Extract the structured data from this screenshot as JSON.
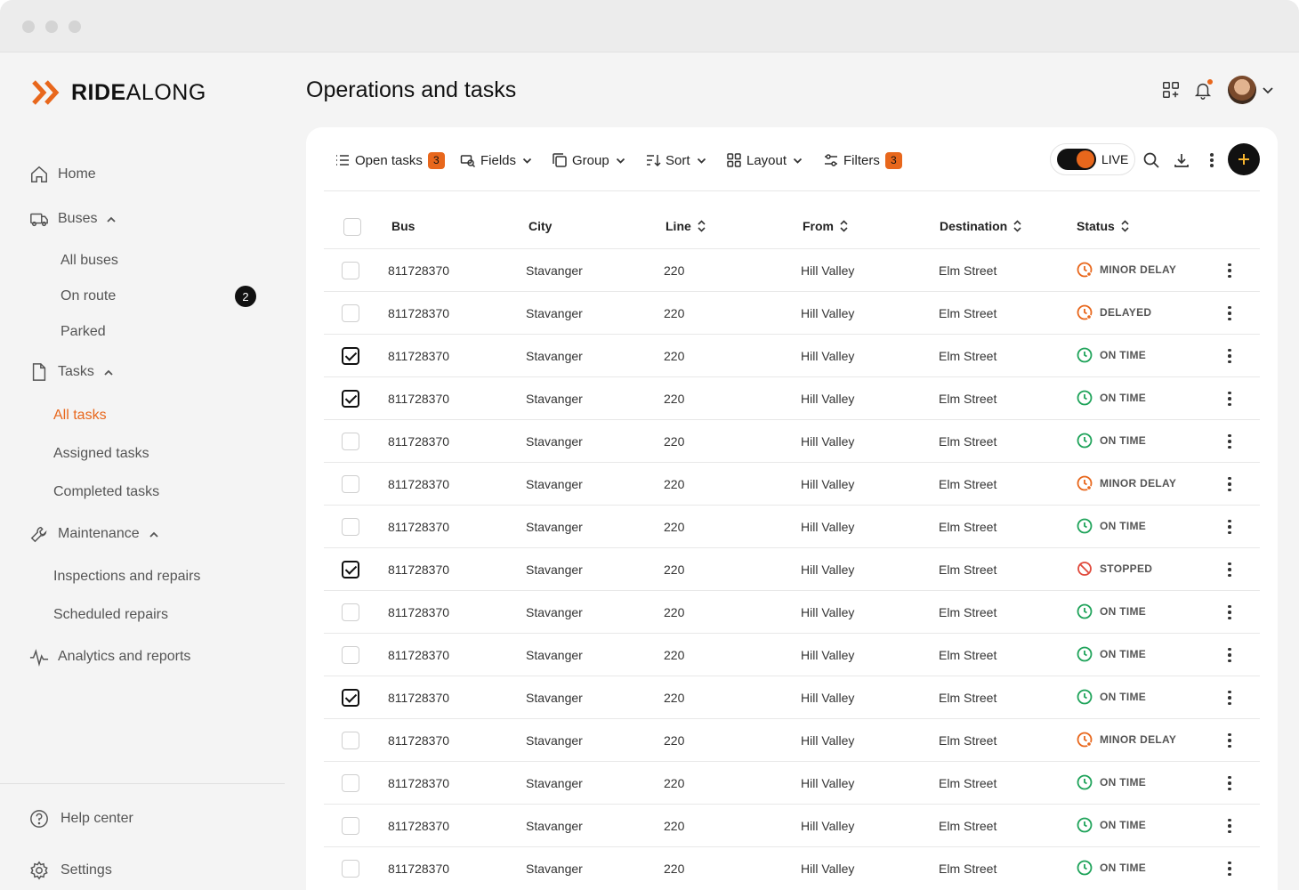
{
  "app": {
    "brand_bold": "RIDE",
    "brand_light": "ALONG",
    "brand_color": "#e8671c"
  },
  "sidebar": {
    "home": "Home",
    "buses": "Buses",
    "buses_sub": [
      "All buses",
      "On route",
      "Parked"
    ],
    "on_route_count": "2",
    "tasks": "Tasks",
    "tasks_sub": [
      "All tasks",
      "Assigned tasks",
      "Completed tasks"
    ],
    "maintenance": "Maintenance",
    "maintenance_sub": [
      "Inspections and repairs",
      "Scheduled repairs"
    ],
    "analytics": "Analytics and reports",
    "help": "Help center",
    "settings": "Settings"
  },
  "header": {
    "title": "Operations and tasks"
  },
  "toolbar": {
    "open_tasks": "Open tasks",
    "open_tasks_count": "3",
    "fields": "Fields",
    "group": "Group",
    "sort": "Sort",
    "layout": "Layout",
    "filters": "Filters",
    "filters_count": "3",
    "live": "LIVE"
  },
  "table": {
    "columns": [
      "Bus",
      "City",
      "Line",
      "From",
      "Destination",
      "Status"
    ],
    "rows": [
      {
        "checked": false,
        "bus": "811728370",
        "city": "Stavanger",
        "line": "220",
        "from": "Hill Valley",
        "destination": "Elm Street",
        "status": "MINOR DELAY"
      },
      {
        "checked": false,
        "bus": "811728370",
        "city": "Stavanger",
        "line": "220",
        "from": "Hill Valley",
        "destination": "Elm Street",
        "status": "DELAYED"
      },
      {
        "checked": true,
        "bus": "811728370",
        "city": "Stavanger",
        "line": "220",
        "from": "Hill Valley",
        "destination": "Elm Street",
        "status": "ON TIME"
      },
      {
        "checked": true,
        "bus": "811728370",
        "city": "Stavanger",
        "line": "220",
        "from": "Hill Valley",
        "destination": "Elm Street",
        "status": "ON TIME"
      },
      {
        "checked": false,
        "bus": "811728370",
        "city": "Stavanger",
        "line": "220",
        "from": "Hill Valley",
        "destination": "Elm Street",
        "status": "ON TIME"
      },
      {
        "checked": false,
        "bus": "811728370",
        "city": "Stavanger",
        "line": "220",
        "from": "Hill Valley",
        "destination": "Elm Street",
        "status": "MINOR DELAY"
      },
      {
        "checked": false,
        "bus": "811728370",
        "city": "Stavanger",
        "line": "220",
        "from": "Hill Valley",
        "destination": "Elm Street",
        "status": "ON TIME"
      },
      {
        "checked": true,
        "bus": "811728370",
        "city": "Stavanger",
        "line": "220",
        "from": "Hill Valley",
        "destination": "Elm Street",
        "status": "STOPPED"
      },
      {
        "checked": false,
        "bus": "811728370",
        "city": "Stavanger",
        "line": "220",
        "from": "Hill Valley",
        "destination": "Elm Street",
        "status": "ON TIME"
      },
      {
        "checked": false,
        "bus": "811728370",
        "city": "Stavanger",
        "line": "220",
        "from": "Hill Valley",
        "destination": "Elm Street",
        "status": "ON TIME"
      },
      {
        "checked": true,
        "bus": "811728370",
        "city": "Stavanger",
        "line": "220",
        "from": "Hill Valley",
        "destination": "Elm Street",
        "status": "ON TIME"
      },
      {
        "checked": false,
        "bus": "811728370",
        "city": "Stavanger",
        "line": "220",
        "from": "Hill Valley",
        "destination": "Elm Street",
        "status": "MINOR DELAY"
      },
      {
        "checked": false,
        "bus": "811728370",
        "city": "Stavanger",
        "line": "220",
        "from": "Hill Valley",
        "destination": "Elm Street",
        "status": "ON TIME"
      },
      {
        "checked": false,
        "bus": "811728370",
        "city": "Stavanger",
        "line": "220",
        "from": "Hill Valley",
        "destination": "Elm Street",
        "status": "ON TIME"
      },
      {
        "checked": false,
        "bus": "811728370",
        "city": "Stavanger",
        "line": "220",
        "from": "Hill Valley",
        "destination": "Elm Street",
        "status": "ON TIME"
      }
    ]
  },
  "status_colors": {
    "ON TIME": "#1fa35a",
    "MINOR DELAY": "#e8671c",
    "DELAYED": "#e8671c",
    "STOPPED": "#e04a3c"
  }
}
